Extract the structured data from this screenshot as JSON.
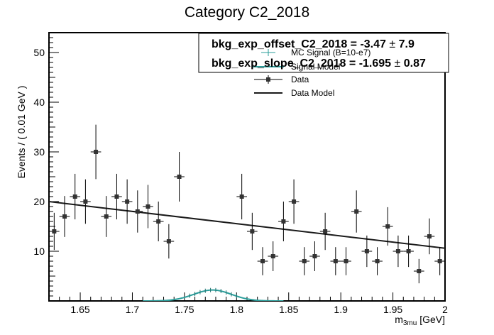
{
  "chart_data": {
    "type": "scatter",
    "title": "Category C2_2018",
    "xlabel_main": "m",
    "xlabel_sub": "3mu",
    "xlabel_unit": " [GeV]",
    "ylabel": "Events / ( 0.01 GeV )",
    "xlim": [
      1.62,
      2.0
    ],
    "ylim": [
      0,
      54
    ],
    "x_ticks": [
      "1.65",
      "1.7",
      "1.75",
      "1.8",
      "1.85",
      "1.9",
      "1.95",
      "2"
    ],
    "y_ticks": [
      "10",
      "20",
      "30",
      "40",
      "50"
    ],
    "bin_width": 0.01,
    "data": {
      "name": "Data",
      "points": [
        {
          "x": 1.625,
          "y": 14
        },
        {
          "x": 1.635,
          "y": 17
        },
        {
          "x": 1.645,
          "y": 21
        },
        {
          "x": 1.655,
          "y": 20
        },
        {
          "x": 1.665,
          "y": 30
        },
        {
          "x": 1.675,
          "y": 17
        },
        {
          "x": 1.685,
          "y": 21
        },
        {
          "x": 1.695,
          "y": 20
        },
        {
          "x": 1.705,
          "y": 18
        },
        {
          "x": 1.715,
          "y": 19
        },
        {
          "x": 1.725,
          "y": 16
        },
        {
          "x": 1.735,
          "y": 12
        },
        {
          "x": 1.745,
          "y": 25
        },
        {
          "x": 1.805,
          "y": 21
        },
        {
          "x": 1.815,
          "y": 14
        },
        {
          "x": 1.825,
          "y": 8
        },
        {
          "x": 1.835,
          "y": 9
        },
        {
          "x": 1.845,
          "y": 16
        },
        {
          "x": 1.855,
          "y": 20
        },
        {
          "x": 1.865,
          "y": 8
        },
        {
          "x": 1.875,
          "y": 9
        },
        {
          "x": 1.885,
          "y": 14
        },
        {
          "x": 1.895,
          "y": 8
        },
        {
          "x": 1.905,
          "y": 8
        },
        {
          "x": 1.915,
          "y": 18
        },
        {
          "x": 1.925,
          "y": 10
        },
        {
          "x": 1.935,
          "y": 8
        },
        {
          "x": 1.945,
          "y": 15
        },
        {
          "x": 1.955,
          "y": 10
        },
        {
          "x": 1.965,
          "y": 10
        },
        {
          "x": 1.975,
          "y": 6
        },
        {
          "x": 1.985,
          "y": 13
        },
        {
          "x": 1.995,
          "y": 8
        }
      ]
    },
    "data_model": {
      "name": "Data Model",
      "x": [
        1.62,
        2.0
      ],
      "y": [
        20.0,
        10.6
      ]
    },
    "signal_model": {
      "name": "Signal Model",
      "mean": 1.777,
      "sigma": 0.018,
      "amplitude": 2.2,
      "xrange": [
        1.71,
        1.845
      ]
    },
    "mc_signal": {
      "name": "MC Signal (B=10-e7)"
    },
    "legend": {
      "placement": "top-right",
      "entries": [
        "MC Signal (B=10-e7)",
        "Signal Model",
        "Data",
        "Data Model"
      ]
    },
    "fit_results": [
      {
        "name": "bkg_exp_offset_C2_2018",
        "value": "-3.47",
        "error": "7.9"
      },
      {
        "name": "bkg_exp_slope_C2_2018",
        "value": "-1.695",
        "error": "0.87"
      }
    ],
    "colors": {
      "data": "#333333",
      "data_model": "#1a1a1a",
      "signal": "#2a9d9a",
      "frame": "#000000"
    }
  }
}
